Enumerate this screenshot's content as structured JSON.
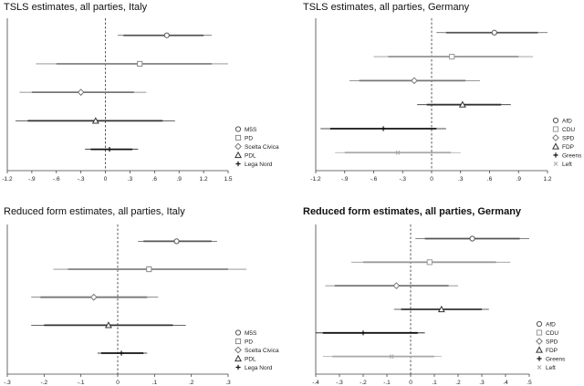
{
  "chart_data": [
    {
      "type": "scatter",
      "title": "TSLS estimates, all parties, Italy",
      "xlim": [
        -1.2,
        1.5
      ],
      "ticks": [
        "-1.2",
        "-.9",
        "-.6",
        "-.3",
        "0",
        ".3",
        ".6",
        ".9",
        "1.2",
        "1.5"
      ],
      "tick_values": [
        -1.2,
        -0.9,
        -0.6,
        -0.3,
        0,
        0.3,
        0.6,
        0.9,
        1.2,
        1.5
      ],
      "legend": [
        "M5S",
        "PD",
        "Scelta Civica",
        "PDL",
        "Lega Nord"
      ],
      "series": [
        {
          "name": "M5S",
          "marker": "circle",
          "color": "#555555",
          "estimate": 0.75,
          "ci95": [
            0.15,
            1.3
          ],
          "ci90": [
            0.22,
            1.2
          ]
        },
        {
          "name": "PD",
          "marker": "square",
          "color": "#8a8a8a",
          "estimate": 0.42,
          "ci95": [
            -0.85,
            1.5
          ],
          "ci90": [
            -0.6,
            1.3
          ]
        },
        {
          "name": "Scelta Civica",
          "marker": "diamond",
          "color": "#777777",
          "estimate": -0.3,
          "ci95": [
            -1.05,
            0.5
          ],
          "ci90": [
            -0.9,
            0.35
          ]
        },
        {
          "name": "PDL",
          "marker": "triangle",
          "color": "#333333",
          "estimate": -0.12,
          "ci95": [
            -1.1,
            0.85
          ],
          "ci90": [
            -0.95,
            0.7
          ]
        },
        {
          "name": "Lega Nord",
          "marker": "plus",
          "color": "#111111",
          "estimate": 0.05,
          "ci95": [
            -0.25,
            0.4
          ],
          "ci90": [
            -0.18,
            0.33
          ]
        }
      ]
    },
    {
      "type": "scatter",
      "title": "TSLS estimates, all parties, Germany",
      "xlim": [
        -1.2,
        1.2
      ],
      "ticks": [
        "-1.2",
        "-.9",
        "-.6",
        "-.3",
        "0",
        ".3",
        ".6",
        ".9",
        "1.2"
      ],
      "tick_values": [
        -1.2,
        -0.9,
        -0.6,
        -0.3,
        0,
        0.3,
        0.6,
        0.9,
        1.2
      ],
      "legend": [
        "AfD",
        "CDU",
        "SPD",
        "FDP",
        "Greens",
        "Left"
      ],
      "series": [
        {
          "name": "AfD",
          "marker": "circle",
          "color": "#555555",
          "estimate": 0.65,
          "ci95": [
            0.05,
            1.2
          ],
          "ci90": [
            0.15,
            1.1
          ]
        },
        {
          "name": "CDU",
          "marker": "square",
          "color": "#9a9a9a",
          "estimate": 0.21,
          "ci95": [
            -0.6,
            1.05
          ],
          "ci90": [
            -0.45,
            0.9
          ]
        },
        {
          "name": "SPD",
          "marker": "diamond",
          "color": "#777777",
          "estimate": -0.18,
          "ci95": [
            -0.85,
            0.5
          ],
          "ci90": [
            -0.75,
            0.35
          ]
        },
        {
          "name": "FDP",
          "marker": "triangle",
          "color": "#333333",
          "estimate": 0.32,
          "ci95": [
            -0.15,
            0.82
          ],
          "ci90": [
            -0.05,
            0.72
          ]
        },
        {
          "name": "Greens",
          "marker": "plus",
          "color": "#111111",
          "estimate": -0.5,
          "ci95": [
            -1.15,
            0.15
          ],
          "ci90": [
            -1.05,
            0.05
          ]
        },
        {
          "name": "Left",
          "marker": "cross",
          "color": "#a8a8a8",
          "estimate": -0.35,
          "ci95": [
            -1.0,
            0.3
          ],
          "ci90": [
            -0.9,
            0.2
          ]
        }
      ]
    },
    {
      "type": "scatter",
      "title": "Reduced form estimates, all parties, Italy",
      "xlim": [
        -0.3,
        0.3
      ],
      "ticks": [
        "-.3",
        "-.2",
        "-.1",
        "0",
        ".1",
        ".2",
        ".3"
      ],
      "tick_values": [
        -0.3,
        -0.2,
        -0.1,
        0,
        0.1,
        0.2,
        0.3
      ],
      "legend": [
        "M5S",
        "PD",
        "Scelta Civica",
        "PDL",
        "Lega Nord"
      ],
      "series": [
        {
          "name": "M5S",
          "marker": "circle",
          "color": "#555555",
          "estimate": 0.16,
          "ci95": [
            0.055,
            0.27
          ],
          "ci90": [
            0.07,
            0.255
          ]
        },
        {
          "name": "PD",
          "marker": "square",
          "color": "#8a8a8a",
          "estimate": 0.085,
          "ci95": [
            -0.175,
            0.35
          ],
          "ci90": [
            -0.135,
            0.3
          ]
        },
        {
          "name": "Scelta Civica",
          "marker": "diamond",
          "color": "#777777",
          "estimate": -0.065,
          "ci95": [
            -0.235,
            0.11
          ],
          "ci90": [
            -0.21,
            0.08
          ]
        },
        {
          "name": "PDL",
          "marker": "triangle",
          "color": "#333333",
          "estimate": -0.025,
          "ci95": [
            -0.235,
            0.185
          ],
          "ci90": [
            -0.2,
            0.15
          ]
        },
        {
          "name": "Lega Nord",
          "marker": "plus",
          "color": "#111111",
          "estimate": 0.01,
          "ci95": [
            -0.055,
            0.08
          ],
          "ci90": [
            -0.045,
            0.07
          ]
        }
      ]
    },
    {
      "type": "scatter",
      "title": "Reduced form estimates, all parties, Germany",
      "xlim": [
        -0.4,
        0.5
      ],
      "ticks": [
        "-.4",
        "-.3",
        "-.2",
        "-.1",
        "0",
        ".1",
        ".2",
        ".3",
        ".4",
        ".5"
      ],
      "tick_values": [
        -0.4,
        -0.3,
        -0.2,
        -0.1,
        0,
        0.1,
        0.2,
        0.3,
        0.4,
        0.5
      ],
      "legend": [
        "AfD",
        "CDU",
        "SPD",
        "FDP",
        "Greens",
        "Left"
      ],
      "series": [
        {
          "name": "AfD",
          "marker": "circle",
          "color": "#555555",
          "estimate": 0.26,
          "ci95": [
            0.02,
            0.5
          ],
          "ci90": [
            0.06,
            0.46
          ]
        },
        {
          "name": "CDU",
          "marker": "square",
          "color": "#9a9a9a",
          "estimate": 0.08,
          "ci95": [
            -0.25,
            0.42
          ],
          "ci90": [
            -0.2,
            0.36
          ]
        },
        {
          "name": "SPD",
          "marker": "diamond",
          "color": "#777777",
          "estimate": -0.06,
          "ci95": [
            -0.36,
            0.2
          ],
          "ci90": [
            -0.32,
            0.16
          ]
        },
        {
          "name": "FDP",
          "marker": "triangle",
          "color": "#333333",
          "estimate": 0.13,
          "ci95": [
            -0.07,
            0.33
          ],
          "ci90": [
            -0.04,
            0.3
          ]
        },
        {
          "name": "Greens",
          "marker": "plus",
          "color": "#111111",
          "estimate": -0.2,
          "ci95": [
            -0.4,
            0.06
          ],
          "ci90": [
            -0.37,
            0.03
          ]
        },
        {
          "name": "Left",
          "marker": "cross",
          "color": "#a8a8a8",
          "estimate": -0.08,
          "ci95": [
            -0.37,
            0.13
          ],
          "ci90": [
            -0.33,
            0.1
          ]
        }
      ]
    }
  ]
}
